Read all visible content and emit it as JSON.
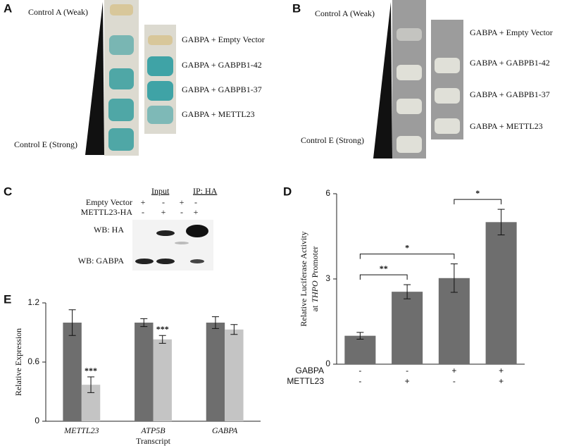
{
  "panels": {
    "A": {
      "letter": "A",
      "top": "Control A (Weak)",
      "bottom": "Control E (Strong)",
      "rows": [
        "GABPA + Empty Vector",
        "GABPA + GABPB1-42",
        "GABPA + GABPB1-37",
        "GABPA + METTL23"
      ]
    },
    "B": {
      "letter": "B",
      "top": "Control A (Weak)",
      "bottom": "Control E (Strong)",
      "rows": [
        "GABPA + Empty Vector",
        "GABPA + GABPB1-42",
        "GABPA + GABPB1-37",
        "GABPA + METTL23"
      ]
    },
    "C": {
      "letter": "C",
      "groups": [
        "Input",
        "IP: HA"
      ],
      "rows": [
        {
          "label": "Empty Vector",
          "signs": [
            "+",
            "-",
            "+",
            "-"
          ]
        },
        {
          "label": "METTL23-HA",
          "signs": [
            "-",
            "+",
            "-",
            "+"
          ]
        }
      ],
      "blots": [
        "WB: HA",
        "WB: GABPA"
      ]
    }
  },
  "chart_data": [
    {
      "type": "bar",
      "letter": "D",
      "ylabel": "Relative Luciferase Activity",
      "ylabel2_pre": "at",
      "ylabel2_italic": "THPO",
      "ylabel2_post": "Promoter",
      "categories": [
        null,
        null,
        null,
        null
      ],
      "values": [
        1.0,
        2.55,
        3.03,
        5.0
      ],
      "errors": [
        0.12,
        0.25,
        0.5,
        0.45
      ],
      "color": "#6e6e6e",
      "ylim": [
        0,
        6
      ],
      "yticks": [
        0,
        3,
        6
      ],
      "conditions": [
        {
          "name": "GABPA",
          "signs": [
            "-",
            "-",
            "+",
            "+"
          ]
        },
        {
          "name": "METTL23",
          "signs": [
            "-",
            "+",
            "-",
            "+"
          ]
        }
      ],
      "brackets": [
        {
          "between": [
            0,
            1
          ],
          "label": "**"
        },
        {
          "between": [
            0,
            2
          ],
          "label": "*"
        },
        {
          "between": [
            2,
            3
          ],
          "label": "*"
        }
      ]
    },
    {
      "type": "bar",
      "letter": "E",
      "ylabel": "Relative Expression",
      "xlabel": "Transcript",
      "categories": [
        "METTL23",
        "ATP5B",
        "GABPA"
      ],
      "series": [
        {
          "color": "#6e6e6e",
          "values": [
            1.0,
            1.0,
            1.0
          ],
          "errors": [
            0.13,
            0.04,
            0.06
          ]
        },
        {
          "color": "#c4c4c4",
          "values": [
            0.37,
            0.83,
            0.93
          ],
          "errors": [
            0.08,
            0.04,
            0.05
          ],
          "annotations": [
            "***",
            "***",
            null
          ]
        }
      ],
      "ylim": [
        0,
        1.2
      ],
      "yticks": [
        0,
        0.6,
        1.2
      ]
    }
  ]
}
